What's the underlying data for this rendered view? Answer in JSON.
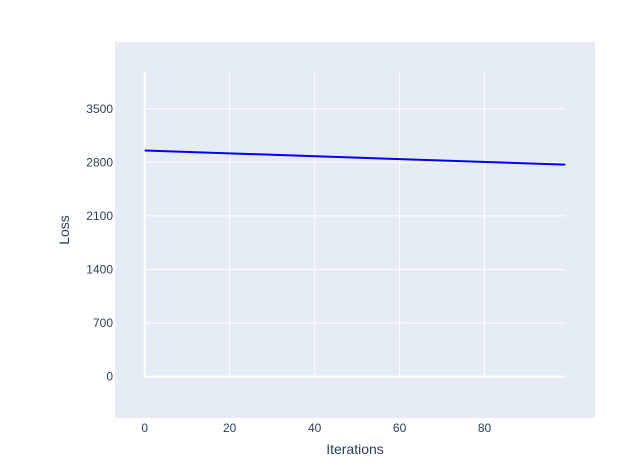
{
  "chart_data": {
    "type": "line",
    "title": "",
    "xlabel": "Iterations",
    "ylabel": "Loss",
    "xlim": [
      -7,
      106
    ],
    "ylim": [
      -541,
      4373
    ],
    "xticks": [
      0,
      20,
      40,
      60,
      80
    ],
    "yticks": [
      0,
      700,
      1400,
      2100,
      2800,
      3500
    ],
    "grid": true,
    "legend": "none",
    "series": [
      {
        "x": [
          0,
          99
        ],
        "y": [
          2955,
          2770
        ],
        "color": "#0000ff"
      }
    ]
  },
  "colors": {
    "plot_bg": "#e5ecf6",
    "grid": "#ffffff",
    "text": "#2a3f5f"
  }
}
